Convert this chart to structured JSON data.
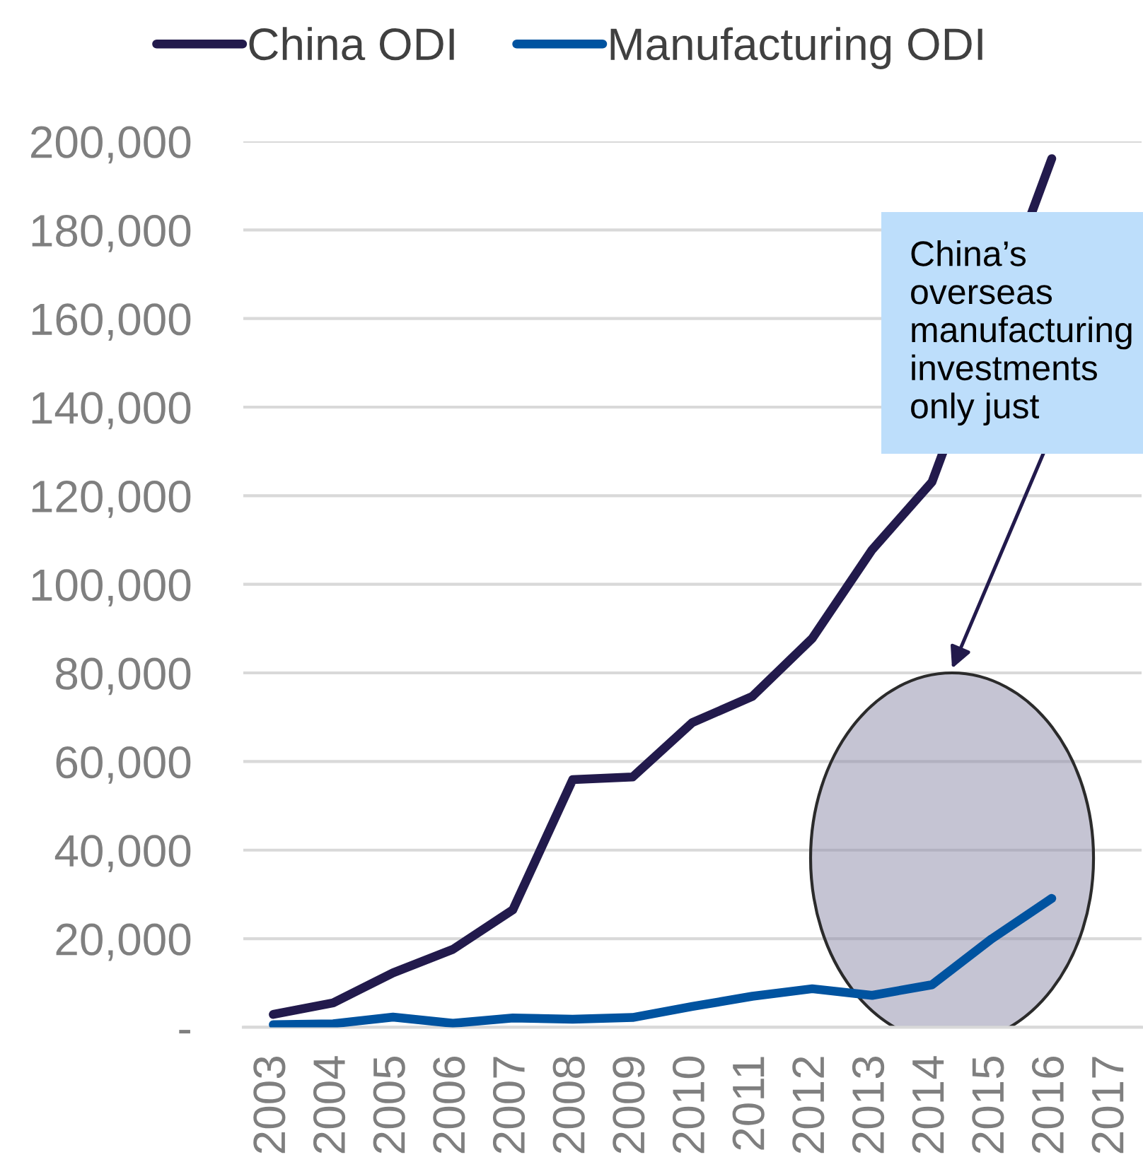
{
  "chart_data": {
    "type": "line",
    "categories": [
      "2003",
      "2004",
      "2005",
      "2006",
      "2007",
      "2008",
      "2009",
      "2010",
      "2011",
      "2012",
      "2013",
      "2014",
      "2015",
      "2016",
      "2017"
    ],
    "series": [
      {
        "name": "China ODI",
        "color": "#221a4c",
        "values": [
          2900,
          5500,
          12300,
          17600,
          26500,
          55900,
          56500,
          68800,
          74700,
          87800,
          107800,
          123100,
          null,
          196100,
          null
        ]
      },
      {
        "name": "Manufacturing ODI",
        "color": "#0053a0",
        "values": [
          600,
          800,
          2300,
          900,
          2100,
          1800,
          2200,
          4700,
          7000,
          8700,
          7200,
          9600,
          20000,
          29100,
          null
        ]
      }
    ],
    "ylim": [
      0,
      200000
    ],
    "yticks": [
      {
        "value": 0,
        "label": "-"
      },
      {
        "value": 20000,
        "label": "20,000"
      },
      {
        "value": 40000,
        "label": "40,000"
      },
      {
        "value": 60000,
        "label": "60,000"
      },
      {
        "value": 80000,
        "label": "80,000"
      },
      {
        "value": 100000,
        "label": "100,000"
      },
      {
        "value": 120000,
        "label": "120,000"
      },
      {
        "value": 140000,
        "label": "140,000"
      },
      {
        "value": 160000,
        "label": "160,000"
      },
      {
        "value": 180000,
        "label": "180,000"
      },
      {
        "value": 200000,
        "label": "200,000"
      }
    ],
    "grid": "y",
    "legend": "top",
    "line_style": "solid",
    "annotations": [
      "China’s overseas manufacturing investments only just"
    ]
  }
}
